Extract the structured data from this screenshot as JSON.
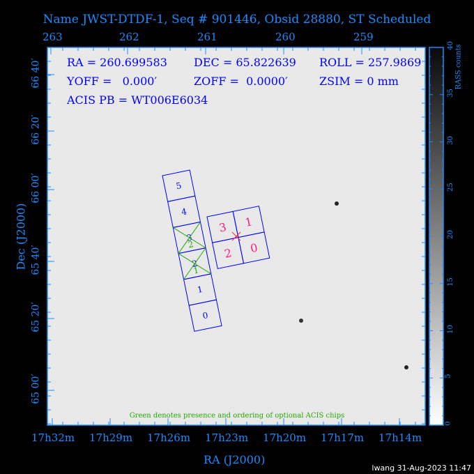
{
  "title": "Name JWST-DTDF-1, Seq # 901446, Obsid 28880, ST Scheduled",
  "info": {
    "ra": "RA = 260.699583",
    "dec": "DEC = 65.822639",
    "roll": "ROLL = 257.9869",
    "yoff": "YOFF =   0.000′",
    "zoff": "ZOFF =  0.0000′",
    "zsim": "ZSIM = 0 mm",
    "acis_pb": "ACIS PB = WT006E6034"
  },
  "top_axis_ticks": [
    "263",
    "262",
    "261",
    "260",
    "259"
  ],
  "bottom_axis_ticks": [
    "17h32m",
    "17h29m",
    "17h26m",
    "17h23m",
    "17h20m",
    "17h17m",
    "17h14m"
  ],
  "left_axis_ticks": [
    "66 40′",
    "66 20′",
    "66 00′",
    "65 40′",
    "65 20′",
    "65 00′"
  ],
  "x_label": "RA (J2000)",
  "y_label": "Dec (J2000)",
  "colorbar": {
    "label": "RASS counts",
    "ticks": [
      "0",
      "5",
      "10",
      "15",
      "20",
      "25",
      "30",
      "35",
      "40"
    ],
    "range": [
      0,
      40
    ]
  },
  "acis_s_chips": [
    "5",
    "4",
    "3",
    "2",
    "1",
    "0"
  ],
  "acis_i_chips": [
    "3",
    "1",
    "2",
    "0"
  ],
  "optional_chip_order": [
    "2",
    "1"
  ],
  "note": "Green denotes presence and ordering of optional ACIS chips",
  "footer": "lwang 31-Aug-2023 11:47",
  "colors": {
    "axis": "#1a8cff",
    "chips": "#0000ff",
    "acis_i_labels": "#ff1a80",
    "optional": "#22aa00",
    "aimpoint": "#ff2020"
  }
}
